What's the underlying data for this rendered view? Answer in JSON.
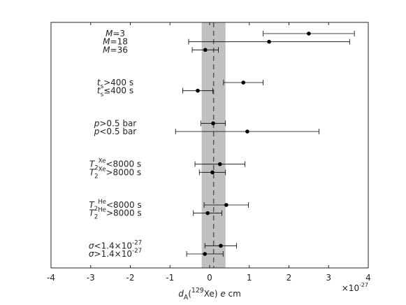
{
  "chart_data": {
    "type": "errorbar",
    "categories": [
      [
        [
          "M",
          "i"
        ],
        [
          "=3",
          ""
        ]
      ],
      [
        [
          "M",
          "i"
        ],
        [
          "=18",
          ""
        ]
      ],
      [
        [
          "M",
          "i"
        ],
        [
          "=36",
          ""
        ]
      ],
      null,
      null,
      null,
      [
        [
          "t",
          "i"
        ],
        [
          "s",
          "sub"
        ],
        [
          ">400 s",
          ""
        ]
      ],
      [
        [
          "t",
          "i"
        ],
        [
          "s",
          "sub"
        ],
        [
          "≤400 s",
          ""
        ]
      ],
      null,
      null,
      null,
      [
        [
          "p",
          "i"
        ],
        [
          ">0.5 bar",
          ""
        ]
      ],
      [
        [
          "p",
          "i"
        ],
        [
          "<0.5 bar",
          ""
        ]
      ],
      null,
      null,
      null,
      [
        [
          "T",
          "i"
        ],
        [
          "2",
          "sub"
        ],
        [
          "Xe",
          "sup"
        ],
        [
          "<8000 s",
          ""
        ]
      ],
      [
        [
          "T",
          "i"
        ],
        [
          "2",
          "sub"
        ],
        [
          "Xe",
          "sup"
        ],
        [
          ">8000 s",
          ""
        ]
      ],
      null,
      null,
      null,
      [
        [
          "T",
          "i"
        ],
        [
          "2",
          "sub"
        ],
        [
          "He",
          "sup"
        ],
        [
          "<8000 s",
          ""
        ]
      ],
      [
        [
          "T",
          "i"
        ],
        [
          "2",
          "sub"
        ],
        [
          "He",
          "sup"
        ],
        [
          ">8000 s",
          ""
        ]
      ],
      null,
      null,
      null,
      [
        [
          "σ",
          "i"
        ],
        [
          "<1.4×10",
          ""
        ],
        [
          "-27",
          "sup"
        ]
      ],
      [
        [
          "σ",
          "i"
        ],
        [
          ">1.4×10",
          ""
        ],
        [
          "-27",
          "sup"
        ]
      ]
    ],
    "values": [
      2.5,
      1.5,
      -0.11,
      null,
      null,
      null,
      0.85,
      -0.3,
      null,
      null,
      null,
      0.09,
      0.95,
      null,
      null,
      null,
      0.26,
      0.07,
      null,
      null,
      null,
      0.42,
      -0.05,
      null,
      null,
      null,
      0.28,
      -0.12
    ],
    "errors": [
      1.15,
      2.03,
      0.33,
      null,
      null,
      null,
      0.5,
      0.38,
      null,
      null,
      null,
      0.31,
      1.81,
      null,
      null,
      null,
      0.63,
      0.33,
      null,
      null,
      null,
      0.56,
      0.36,
      null,
      null,
      null,
      0.4,
      0.46
    ],
    "color": "#000000",
    "band": [
      -0.2,
      0.4
    ],
    "band_color": "#c0c0c0",
    "reference_line": 0.1,
    "xlim": [
      -4,
      4
    ],
    "xticks": [
      -4,
      -3,
      -2,
      -1,
      0,
      1,
      2,
      3,
      4
    ],
    "x_label": [
      [
        "d",
        "i"
      ],
      [
        "A",
        "sub"
      ],
      [
        "(",
        ""
      ],
      [
        "129",
        "sup"
      ],
      [
        "Xe) ",
        ""
      ],
      [
        "e",
        "i"
      ],
      [
        " cm",
        ""
      ]
    ],
    "x_multiplier": [
      [
        "×10",
        ""
      ],
      [
        "-27",
        "sup"
      ]
    ]
  }
}
